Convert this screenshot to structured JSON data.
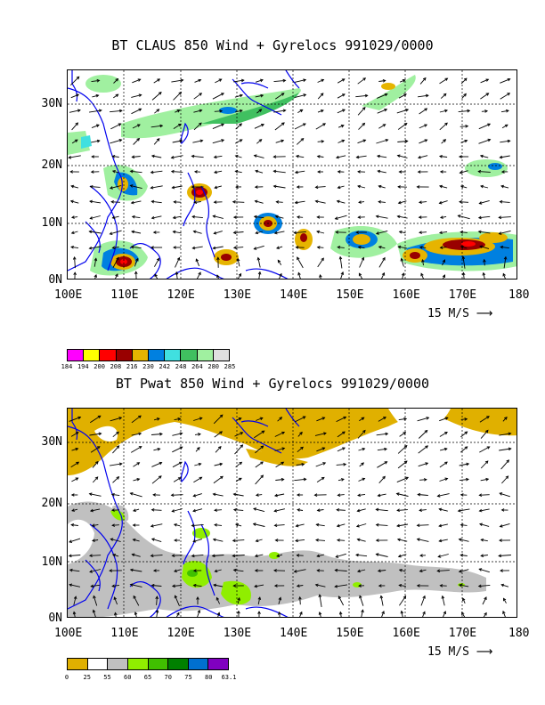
{
  "panel1": {
    "title": "BT CLAUS 850 Wind + Gyrelocs 991029/0000",
    "x_ticks": [
      "100E",
      "110E",
      "120E",
      "130E",
      "140E",
      "150E",
      "160E",
      "170E",
      "180"
    ],
    "y_ticks": [
      "30N",
      "20N",
      "10N",
      "0N"
    ],
    "ref_vector": "15 M/S",
    "colorbar_labels": [
      "184",
      "194",
      "200",
      "208",
      "216",
      "230",
      "242",
      "248",
      "264",
      "280",
      "285"
    ],
    "colorbar_colors": [
      "#ff00ff",
      "#ffff00",
      "#ff0000",
      "#990000",
      "#e6b400",
      "#0080e0",
      "#40e0e0",
      "#40c060",
      "#a0f0a0",
      "#e0e0e0"
    ]
  },
  "panel2": {
    "title": "BT Pwat 850 Wind + Gyrelocs 991029/0000",
    "x_ticks": [
      "100E",
      "110E",
      "120E",
      "130E",
      "140E",
      "150E",
      "160E",
      "170E",
      "180"
    ],
    "y_ticks": [
      "30N",
      "20N",
      "10N",
      "0N"
    ],
    "ref_vector": "15 M/S",
    "colorbar_labels": [
      "0",
      "25",
      "55",
      "60",
      "65",
      "70",
      "75",
      "80",
      "63.1"
    ],
    "colorbar_colors": [
      "#e0b000",
      "#ffffff",
      "#c0c0c0",
      "#90ee00",
      "#40c000",
      "#008000",
      "#0070d0",
      "#8000c0"
    ]
  }
}
